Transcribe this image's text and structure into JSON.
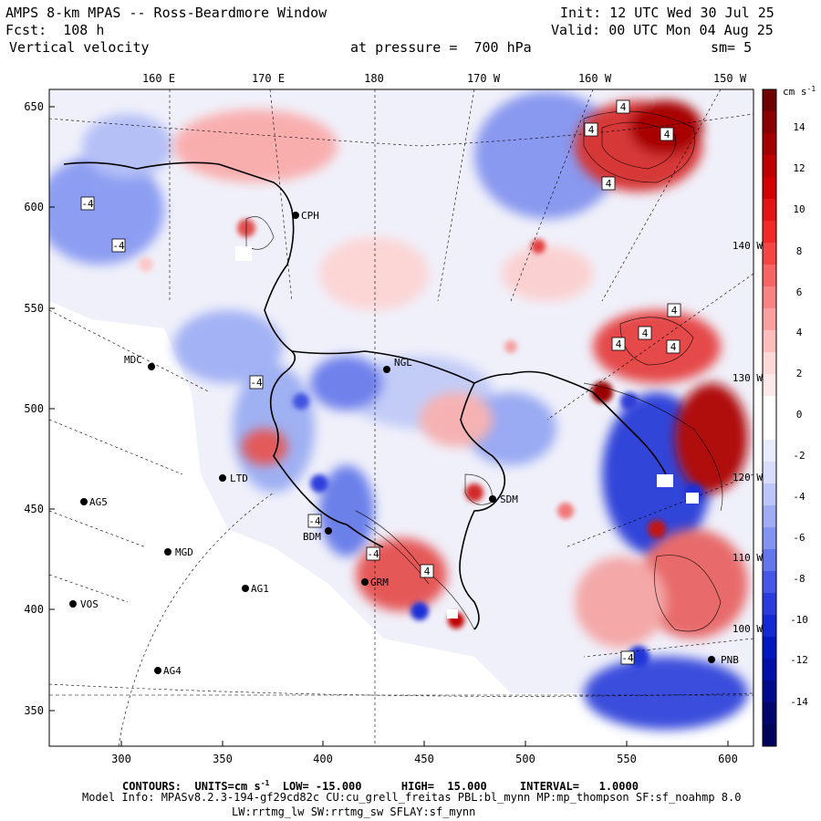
{
  "header": {
    "model": "AMPS 8-km MPAS -- Ross-Beardmore Window",
    "fcst": "Fcst:  108 h",
    "field": "Vertical velocity",
    "init": "Init: 12 UTC Wed 30 Jul 25",
    "valid": "Valid: 00 UTC Mon 04 Aug 25",
    "pressure": "at pressure =  700 hPa",
    "smoothing": "sm= 5"
  },
  "top_longitude_labels": [
    "160 E",
    "170 E",
    "180",
    "170 W",
    "160 W",
    "150 W"
  ],
  "right_longitude_labels": [
    "140 W",
    "130 W",
    "120 W",
    "110 W",
    "100 W"
  ],
  "y_axis_ticks": [
    "650",
    "600",
    "550",
    "500",
    "450",
    "400",
    "350"
  ],
  "x_axis_ticks": [
    "300",
    "350",
    "400",
    "450",
    "500",
    "550",
    "600"
  ],
  "colorbar": {
    "units": "cm s",
    "units_exp": "-1",
    "labels": [
      "14",
      "12",
      "10",
      "8",
      "6",
      "4",
      "2",
      "0",
      "-2",
      "-4",
      "-6",
      "-8",
      "-10",
      "-12",
      "-14"
    ],
    "colors": [
      "#6e0000",
      "#8b0000",
      "#a50000",
      "#c00000",
      "#d40000",
      "#e41414",
      "#f02828",
      "#f54646",
      "#f76464",
      "#f98282",
      "#fba0a0",
      "#fcbdbd",
      "#fdd8d8",
      "#fde9e9",
      "#ffffff",
      "#ffffff",
      "#e9ecfd",
      "#d8ddfb",
      "#bdc6f8",
      "#a0adf5",
      "#8293f1",
      "#6476ec",
      "#4656e6",
      "#2a3cde",
      "#1428d4",
      "#0018c0",
      "#0010a8",
      "#000a8c",
      "#00066e",
      "#00035a"
    ]
  },
  "stations": [
    {
      "id": "MDC"
    },
    {
      "id": "NGL"
    },
    {
      "id": "CPH"
    },
    {
      "id": "LTD"
    },
    {
      "id": "AG5"
    },
    {
      "id": "MGD"
    },
    {
      "id": "AG1"
    },
    {
      "id": "VOS"
    },
    {
      "id": "AG4"
    },
    {
      "id": "SDM"
    },
    {
      "id": "BDM"
    },
    {
      "id": "GRM"
    },
    {
      "id": "PNB"
    }
  ],
  "contour_labels": [
    "4",
    "4",
    "4",
    "4",
    "4",
    "4",
    "4",
    "4",
    "4",
    "-4",
    "-4",
    "-4",
    "-4",
    "-4",
    "-4"
  ],
  "footer": {
    "contours": "CONTOURS:  UNITS=cm s",
    "contours_exp": "-1",
    "contours_rest": "  LOW= -15.000      HIGH=  15.000     INTERVAL=   1.0000",
    "model_info": "Model Info: MPASv8.2.3-194-gf29cd82c CU:cu_grell_freitas PBL:bl_mynn MP:mp_thompson SF:sf_noahmp 8.0",
    "physics": "LW:rrtmg_lw SW:rrtmg_sw SFLAY:sf_mynn"
  }
}
